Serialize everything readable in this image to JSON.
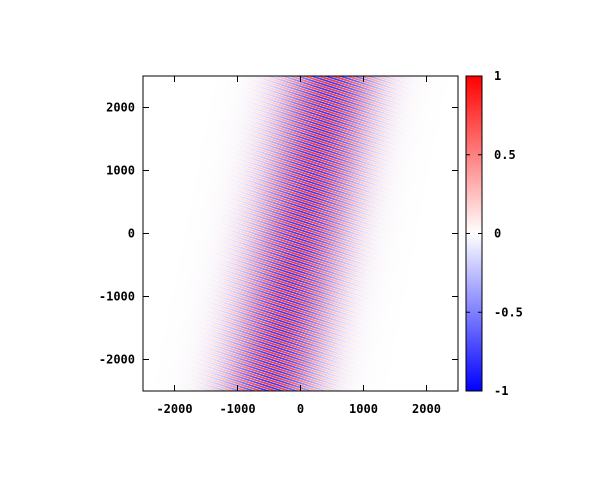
{
  "chart_data": {
    "type": "heatmap",
    "title": "",
    "xlabel": "",
    "ylabel": "",
    "xlim": [
      -2500,
      2500
    ],
    "ylim": [
      -2500,
      2500
    ],
    "x_ticks": [
      -2000,
      -1000,
      0,
      1000,
      2000
    ],
    "x_tick_labels": [
      "-2000",
      "-1000",
      "0",
      "1000",
      "2000"
    ],
    "y_ticks": [
      -2000,
      -1000,
      0,
      1000,
      2000
    ],
    "y_tick_labels": [
      "-2000",
      "-1000",
      "0",
      "1000",
      "2000"
    ],
    "grid": false,
    "field": {
      "description_of_pattern": "oscillating field confined to a tilted band",
      "band_center_at_y0": 0,
      "band_center_slope_dx_dy": 0.2,
      "band_envelope_sigma": 520,
      "fringe_wavelength": 70,
      "fringe_angle_deg": 72,
      "peak_amplitude": 1
    },
    "colorbar": {
      "range": [
        -1,
        1
      ],
      "ticks": [
        1,
        0.5,
        0,
        -0.5,
        -1
      ],
      "tick_labels": [
        "1",
        "0.5",
        "0",
        "-0.5",
        "-1"
      ],
      "colors": {
        "min": "#0000ff",
        "mid": "#ffffff",
        "max": "#ff0000"
      }
    }
  }
}
